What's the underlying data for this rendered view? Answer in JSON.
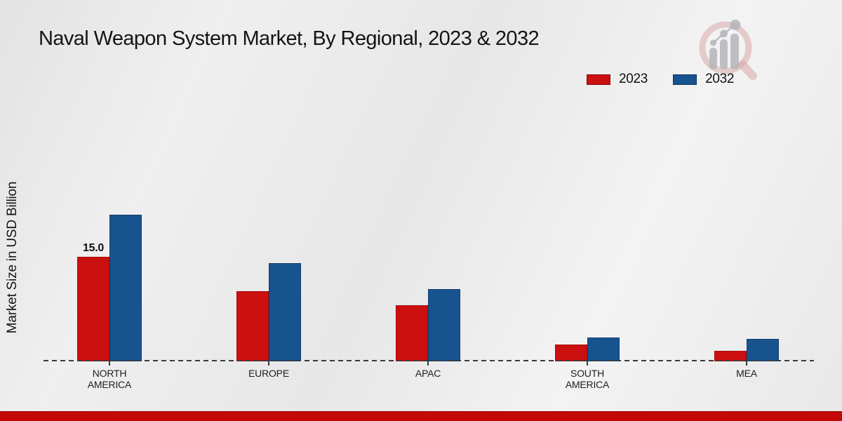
{
  "title": "Naval Weapon System Market, By Regional, 2023 & 2032",
  "ylabel": "Market Size in USD Billion",
  "colors": {
    "series_2023": "#cc0f0f",
    "series_2023_border": "#a50b0b",
    "series_2032": "#17538f",
    "series_2032_border": "#123f6d",
    "footer_strip": "#c40707",
    "baseline": "#3a3a3a"
  },
  "branding": {
    "logo_icon": "magnifier-bar-chart-logo"
  },
  "chart_data": {
    "type": "bar",
    "title": "Naval Weapon System Market, By Regional, 2023 & 2032",
    "xlabel": "",
    "ylabel": "Market Size in USD Billion",
    "categories": [
      "NORTH\nAMERICA",
      "EUROPE",
      "APAC",
      "SOUTH\nAMERICA",
      "MEA"
    ],
    "series": [
      {
        "name": "2023",
        "color": "#cc0f0f",
        "border": "#a50b0b",
        "values": [
          15.0,
          10.0,
          8.0,
          2.4,
          1.5
        ]
      },
      {
        "name": "2032",
        "color": "#17538f",
        "border": "#123f6d",
        "values": [
          21.0,
          14.1,
          10.4,
          3.4,
          3.2
        ]
      }
    ],
    "value_labels": [
      {
        "series_index": 0,
        "category_index": 0,
        "text": "15.0"
      }
    ],
    "ylim": [
      0,
      22
    ],
    "grid": false,
    "legend_position": "top-right",
    "baseline_style": "dashed"
  }
}
